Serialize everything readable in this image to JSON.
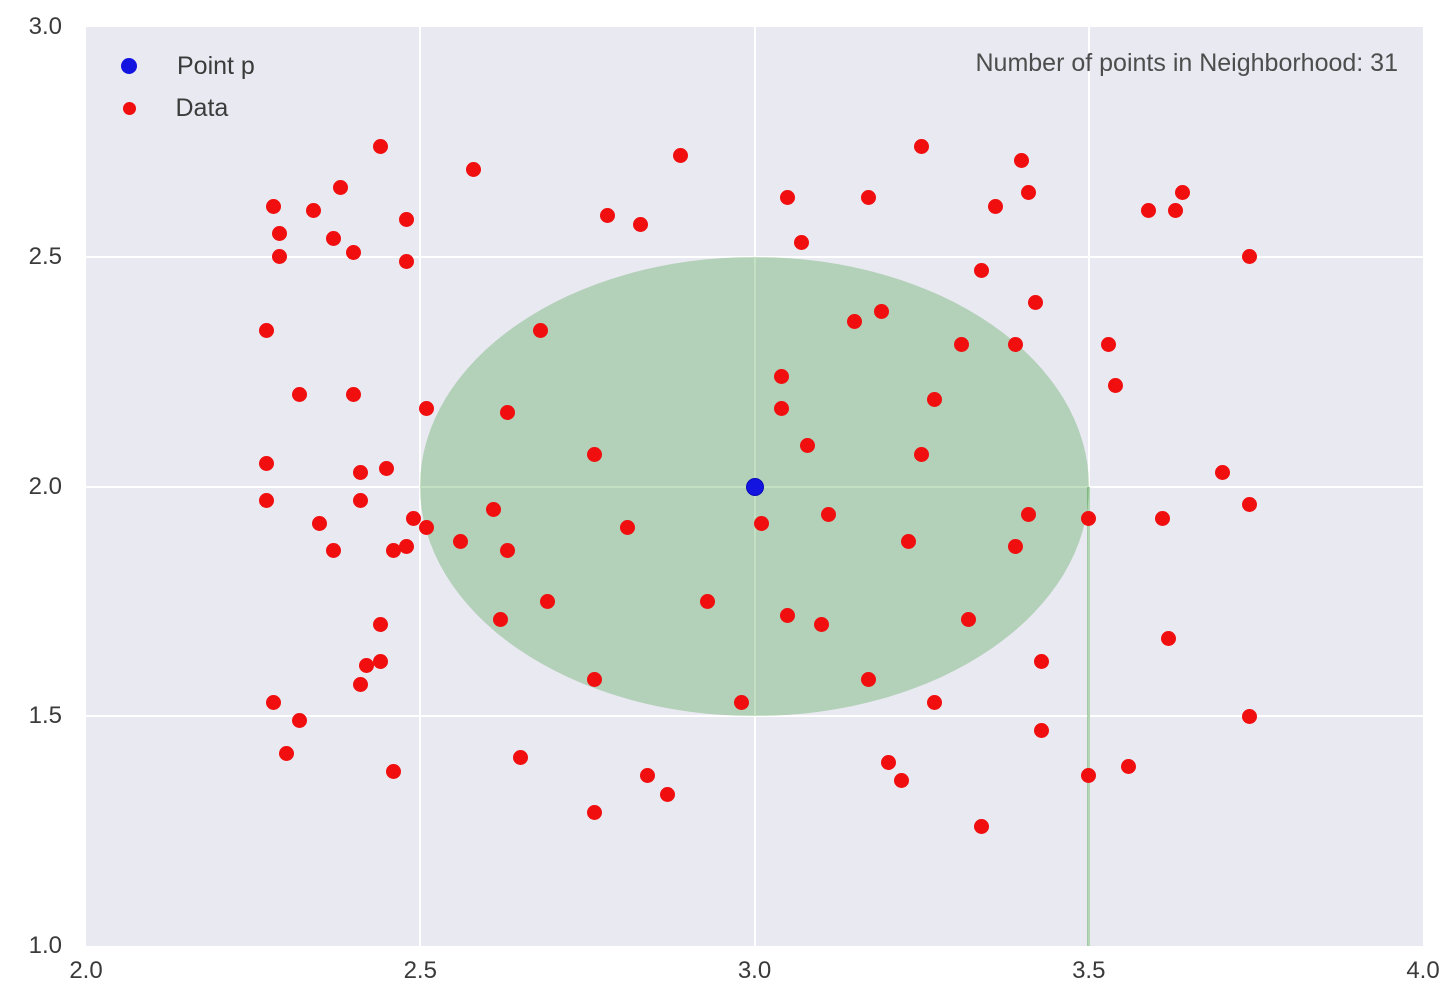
{
  "chart_data": {
    "type": "scatter",
    "annotation": "Number of points in Neighborhood: 31",
    "xlim": [
      2.0,
      4.0
    ],
    "ylim": [
      1.0,
      3.0
    ],
    "grid": true,
    "x_ticks": [
      {
        "value": 2.0,
        "label": "2.0"
      },
      {
        "value": 2.5,
        "label": "2.5"
      },
      {
        "value": 3.0,
        "label": "3.0"
      },
      {
        "value": 3.5,
        "label": "3.5"
      },
      {
        "value": 4.0,
        "label": "4.0"
      }
    ],
    "y_ticks": [
      {
        "value": 1.0,
        "label": "1.0"
      },
      {
        "value": 1.5,
        "label": "1.5"
      },
      {
        "value": 2.0,
        "label": "2.0"
      },
      {
        "value": 2.5,
        "label": "2.5"
      },
      {
        "value": 3.0,
        "label": "3.0"
      }
    ],
    "legend": [
      {
        "label": "Point p",
        "color": "#1414e0",
        "marker_size": 16
      },
      {
        "label": "Data",
        "color": "#f10e0e",
        "marker_size": 13
      }
    ],
    "legend_position": "upper left",
    "point_p": {
      "x": 3.0,
      "y": 2.0,
      "color": "#1414e0",
      "edge_color": "#0a0ab8",
      "marker_size": 18
    },
    "neighborhood": {
      "center_x": 3.0,
      "center_y": 2.0,
      "radius": 0.5,
      "fill_color": "#228B22",
      "fill_opacity": 0.27
    },
    "green_artifact_line": {
      "x": 3.5,
      "y_from": 1.0,
      "y_to": 2.0,
      "color": "#228B22",
      "opacity": 0.35
    },
    "series": [
      {
        "name": "Data",
        "color": "#f10e0e",
        "marker_size": 15,
        "points": [
          [
            2.44,
            2.74
          ],
          [
            2.58,
            2.69
          ],
          [
            2.38,
            2.65
          ],
          [
            2.28,
            2.61
          ],
          [
            2.34,
            2.6
          ],
          [
            2.48,
            2.58
          ],
          [
            2.29,
            2.55
          ],
          [
            2.37,
            2.54
          ],
          [
            2.4,
            2.51
          ],
          [
            2.48,
            2.49
          ],
          [
            2.29,
            2.5
          ],
          [
            2.27,
            2.34
          ],
          [
            2.32,
            2.2
          ],
          [
            2.4,
            2.2
          ],
          [
            2.51,
            2.17
          ],
          [
            2.63,
            2.16
          ],
          [
            2.89,
            2.72
          ],
          [
            3.25,
            2.74
          ],
          [
            3.05,
            2.63
          ],
          [
            3.17,
            2.63
          ],
          [
            2.78,
            2.59
          ],
          [
            2.83,
            2.57
          ],
          [
            3.07,
            2.53
          ],
          [
            2.68,
            2.34
          ],
          [
            3.15,
            2.36
          ],
          [
            3.19,
            2.38
          ],
          [
            3.31,
            2.31
          ],
          [
            3.04,
            2.24
          ],
          [
            3.27,
            2.19
          ],
          [
            3.04,
            2.17
          ],
          [
            3.4,
            2.71
          ],
          [
            3.41,
            2.64
          ],
          [
            3.36,
            2.61
          ],
          [
            3.64,
            2.64
          ],
          [
            3.59,
            2.6
          ],
          [
            3.63,
            2.6
          ],
          [
            3.74,
            2.5
          ],
          [
            3.34,
            2.47
          ],
          [
            3.42,
            2.4
          ],
          [
            3.39,
            2.31
          ],
          [
            3.53,
            2.31
          ],
          [
            3.54,
            2.22
          ],
          [
            2.27,
            2.05
          ],
          [
            2.41,
            2.03
          ],
          [
            2.45,
            2.04
          ],
          [
            2.27,
            1.97
          ],
          [
            2.41,
            1.97
          ],
          [
            2.35,
            1.92
          ],
          [
            2.49,
            1.93
          ],
          [
            2.51,
            1.91
          ],
          [
            2.37,
            1.86
          ],
          [
            2.46,
            1.86
          ],
          [
            2.48,
            1.87
          ],
          [
            2.56,
            1.88
          ],
          [
            2.61,
            1.95
          ],
          [
            2.63,
            1.86
          ],
          [
            2.62,
            1.71
          ],
          [
            2.44,
            1.7
          ],
          [
            2.44,
            1.62
          ],
          [
            2.42,
            1.61
          ],
          [
            2.41,
            1.57
          ],
          [
            2.76,
            2.07
          ],
          [
            3.08,
            2.09
          ],
          [
            3.25,
            2.07
          ],
          [
            3.01,
            1.92
          ],
          [
            3.11,
            1.94
          ],
          [
            2.81,
            1.91
          ],
          [
            3.23,
            1.88
          ],
          [
            2.69,
            1.75
          ],
          [
            2.93,
            1.75
          ],
          [
            3.05,
            1.72
          ],
          [
            3.1,
            1.7
          ],
          [
            3.32,
            1.71
          ],
          [
            2.76,
            1.58
          ],
          [
            3.17,
            1.58
          ],
          [
            3.7,
            2.03
          ],
          [
            3.74,
            1.96
          ],
          [
            3.41,
            1.94
          ],
          [
            3.5,
            1.93
          ],
          [
            3.61,
            1.93
          ],
          [
            3.39,
            1.87
          ],
          [
            3.62,
            1.67
          ],
          [
            3.43,
            1.62
          ],
          [
            2.28,
            1.53
          ],
          [
            2.32,
            1.49
          ],
          [
            2.3,
            1.42
          ],
          [
            2.46,
            1.38
          ],
          [
            2.65,
            1.41
          ],
          [
            2.98,
            1.53
          ],
          [
            3.27,
            1.53
          ],
          [
            2.84,
            1.37
          ],
          [
            2.87,
            1.33
          ],
          [
            2.76,
            1.29
          ],
          [
            3.2,
            1.4
          ],
          [
            3.22,
            1.36
          ],
          [
            3.34,
            1.26
          ],
          [
            3.74,
            1.5
          ],
          [
            3.43,
            1.47
          ],
          [
            3.5,
            1.37
          ],
          [
            3.56,
            1.39
          ]
        ]
      }
    ],
    "colors": {
      "panel_background": "#e9e9f1",
      "grid": "#ffffff",
      "tick_text": "#3a3a3a",
      "annotation_text": "#4d4d4d"
    }
  }
}
